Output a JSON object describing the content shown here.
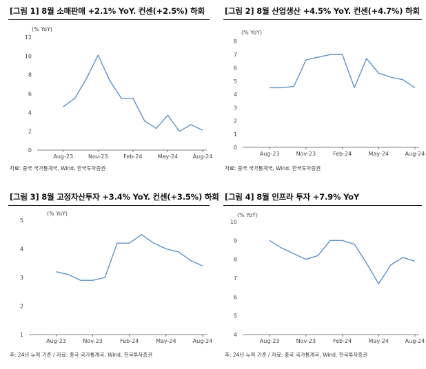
{
  "panels": [
    {
      "title": "[그림 1] 8월 소매판매 +2.1% YoY. 컨센(+2.5%) 하회",
      "source": "자료: 중국 국가통계국, Wind, 한국투자증권",
      "chart_data": {
        "type": "line",
        "unit_label": "(% YoY)",
        "x": [
          "Jun-23",
          "Jul-23",
          "Aug-23",
          "Sep-23",
          "Oct-23",
          "Nov-23",
          "Dec-23",
          "Jan-24",
          "Feb-24",
          "Mar-24",
          "Apr-24",
          "May-24",
          "Jun-24",
          "Jul-24",
          "Aug-24"
        ],
        "x_tick_labels": [
          "Aug-23",
          "Nov-23",
          "Feb-24",
          "May-24",
          "Aug-24"
        ],
        "values": [
          null,
          null,
          4.6,
          5.5,
          7.6,
          10.1,
          7.4,
          5.5,
          5.5,
          3.1,
          2.3,
          3.7,
          2.0,
          2.7,
          2.1
        ],
        "yticks": [
          0,
          2,
          4,
          6,
          8,
          10,
          12
        ],
        "ylim": [
          0,
          12
        ],
        "line_color": "#5b8fc8"
      }
    },
    {
      "title": "[그림 2] 8월 산업생산 +4.5% YoY. 컨센(+4.7%) 하회",
      "source": "자료: 중국 국가통계국, Wind, 한국투자증권",
      "chart_data": {
        "type": "line",
        "unit_label": "(% YoY)",
        "x": [
          "Jun-23",
          "Jul-23",
          "Aug-23",
          "Sep-23",
          "Oct-23",
          "Nov-23",
          "Dec-23",
          "Jan-24",
          "Feb-24",
          "Mar-24",
          "Apr-24",
          "May-24",
          "Jun-24",
          "Jul-24",
          "Aug-24"
        ],
        "x_tick_labels": [
          "Aug-23",
          "Nov-23",
          "Feb-24",
          "May-24",
          "Aug-24"
        ],
        "values": [
          null,
          null,
          4.5,
          4.5,
          4.6,
          6.6,
          6.8,
          7.0,
          7.0,
          4.5,
          6.7,
          5.6,
          5.3,
          5.1,
          4.5
        ],
        "yticks": [
          0,
          1,
          2,
          3,
          4,
          5,
          6,
          7,
          8
        ],
        "ylim": [
          0,
          8
        ],
        "line_color": "#5b8fc8"
      }
    },
    {
      "title": "[그림 3] 8월 고정자산투자 +3.4% YoY. 컨센(+3.5%) 하회",
      "source": "주: 24년 누적 기준 / 자료: 중국 국가통계국, Wind, 한국투자증권",
      "chart_data": {
        "type": "line",
        "unit_label": "(% YoY)",
        "x": [
          "Jun-23",
          "Jul-23",
          "Aug-23",
          "Sep-23",
          "Oct-23",
          "Nov-23",
          "Dec-23",
          "Jan-24",
          "Feb-24",
          "Mar-24",
          "Apr-24",
          "May-24",
          "Jun-24",
          "Jul-24",
          "Aug-24"
        ],
        "x_tick_labels": [
          "Aug-23",
          "Nov-23",
          "Feb-24",
          "May-24",
          "Aug-24"
        ],
        "values": [
          null,
          null,
          3.2,
          3.1,
          2.9,
          2.9,
          3.0,
          4.2,
          4.2,
          4.5,
          4.2,
          4.0,
          3.9,
          3.6,
          3.4
        ],
        "yticks": [
          1,
          2,
          3,
          4,
          5
        ],
        "ylim": [
          1,
          5
        ],
        "line_color": "#5b8fc8"
      }
    },
    {
      "title": "[그림 4] 8월 인프라 투자 +7.9% YoY",
      "source": "주: 24년 누적 기준 / 자료: 중국 국가통계국, Wind, 한국투자증권",
      "chart_data": {
        "type": "line",
        "unit_label": "(% YoY)",
        "x": [
          "Jun-23",
          "Jul-23",
          "Aug-23",
          "Sep-23",
          "Oct-23",
          "Nov-23",
          "Dec-23",
          "Jan-24",
          "Feb-24",
          "Mar-24",
          "Apr-24",
          "May-24",
          "Jun-24",
          "Jul-24",
          "Aug-24"
        ],
        "x_tick_labels": [
          "Aug-23",
          "Nov-23",
          "Feb-24",
          "May-24",
          "Aug-24"
        ],
        "values": [
          null,
          null,
          9.0,
          8.6,
          8.3,
          8.0,
          8.2,
          9.0,
          9.0,
          8.8,
          7.8,
          6.7,
          7.7,
          8.1,
          7.9
        ],
        "yticks": [
          4,
          5,
          6,
          7,
          8,
          9,
          10
        ],
        "ylim": [
          4,
          10
        ],
        "line_color": "#5b8fc8"
      }
    }
  ]
}
